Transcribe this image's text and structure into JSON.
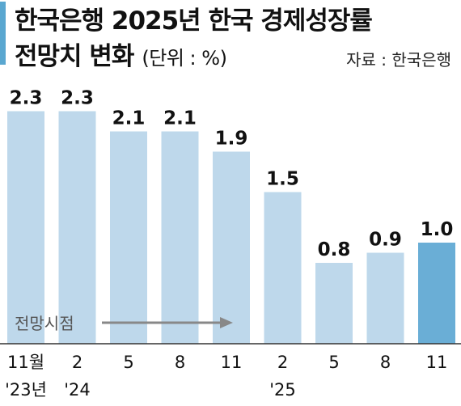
{
  "header": {
    "title_line1": "한국은행 2025년 한국 경제성장률",
    "title_line2": "전망치 변화",
    "unit": "(단위 : %)",
    "source": "자료 : 한국은행"
  },
  "chart_data": {
    "type": "bar",
    "categories": [
      {
        "month": "11월",
        "year": "'23년"
      },
      {
        "month": "2",
        "year": "'24"
      },
      {
        "month": "5",
        "year": ""
      },
      {
        "month": "8",
        "year": ""
      },
      {
        "month": "11",
        "year": ""
      },
      {
        "month": "2",
        "year": "'25"
      },
      {
        "month": "5",
        "year": ""
      },
      {
        "month": "8",
        "year": ""
      },
      {
        "month": "11",
        "year": ""
      }
    ],
    "values": [
      2.3,
      2.3,
      2.1,
      2.1,
      1.9,
      1.5,
      0.8,
      0.9,
      1.0
    ],
    "value_labels": [
      "2.3",
      "2.3",
      "2.1",
      "2.1",
      "1.9",
      "1.5",
      "0.8",
      "0.9",
      "1.0"
    ],
    "highlight_index": 8,
    "annotation": "전망시점",
    "colors": {
      "bar": "#bed8eb",
      "highlight_bar": "#6aaed6",
      "axis": "#333333",
      "arrow": "#888888",
      "annotation_text": "#555555"
    }
  }
}
